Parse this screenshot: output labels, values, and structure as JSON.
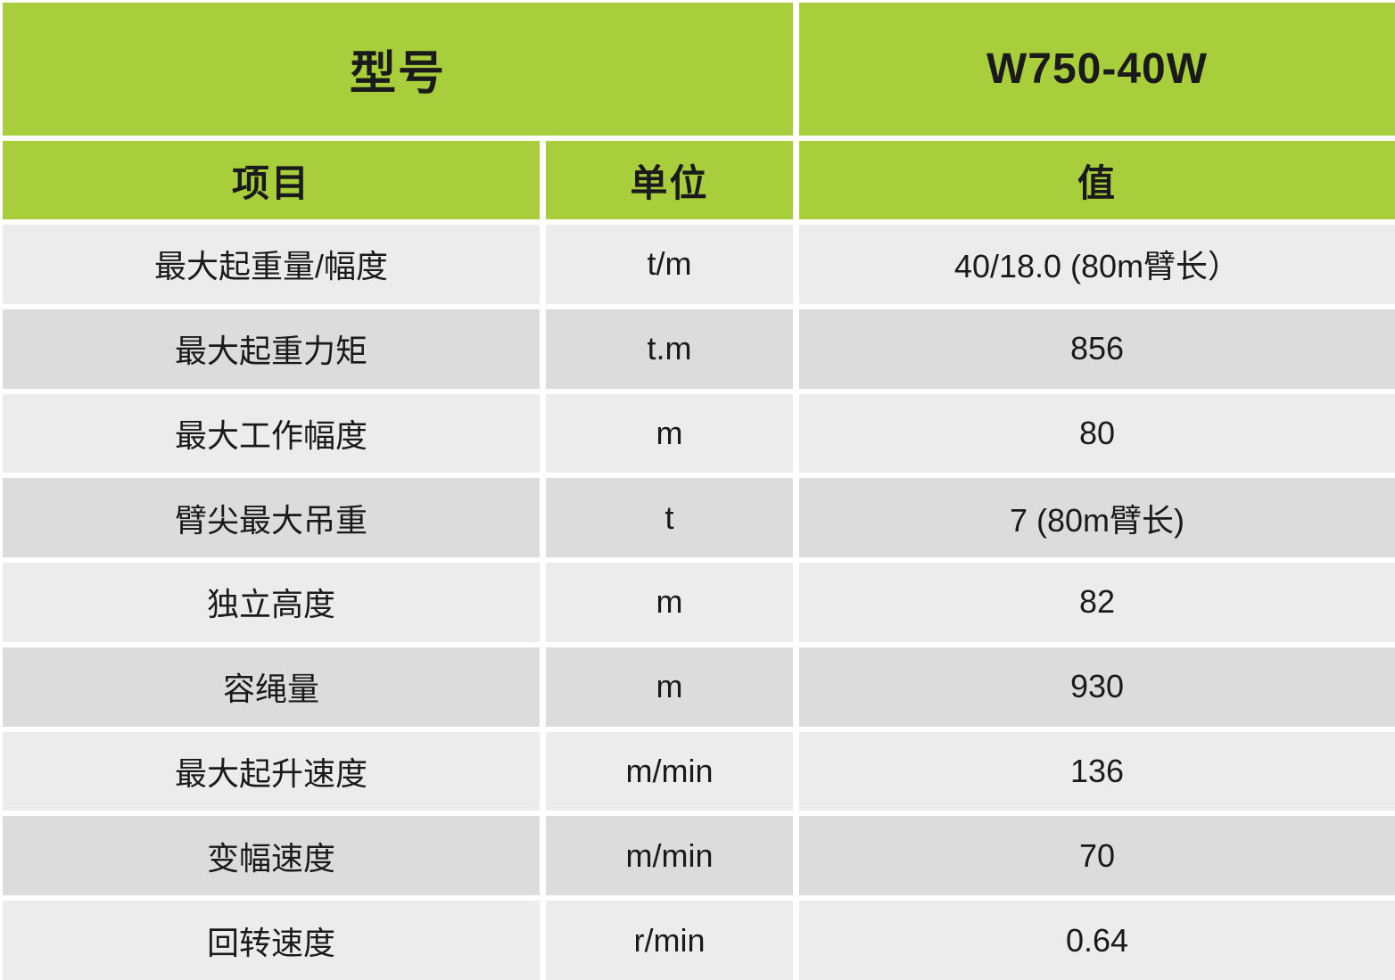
{
  "colors": {
    "header_green": "#a9ce3b",
    "row_light": "#ececec",
    "row_dark": "#dcdcdc",
    "text": "#1a1a1a",
    "divider": "#ffffff"
  },
  "table": {
    "model_label": "型号",
    "model_value": "W750-40W",
    "columns": {
      "item": "项目",
      "unit": "单位",
      "value": "值"
    },
    "rows": [
      {
        "item": "最大起重量/幅度",
        "unit": "t/m",
        "value": "40/18.0 (80m臂长）"
      },
      {
        "item": "最大起重力矩",
        "unit": "t.m",
        "value": "856"
      },
      {
        "item": "最大工作幅度",
        "unit": "m",
        "value": "80"
      },
      {
        "item": "臂尖最大吊重",
        "unit": "t",
        "value": "7 (80m臂长)"
      },
      {
        "item": "独立高度",
        "unit": "m",
        "value": "82"
      },
      {
        "item": "容绳量",
        "unit": "m",
        "value": "930"
      },
      {
        "item": "最大起升速度",
        "unit": "m/min",
        "value": "136"
      },
      {
        "item": "变幅速度",
        "unit": "m/min",
        "value": "70"
      },
      {
        "item": "回转速度",
        "unit": "r/min",
        "value": "0.64"
      }
    ]
  }
}
